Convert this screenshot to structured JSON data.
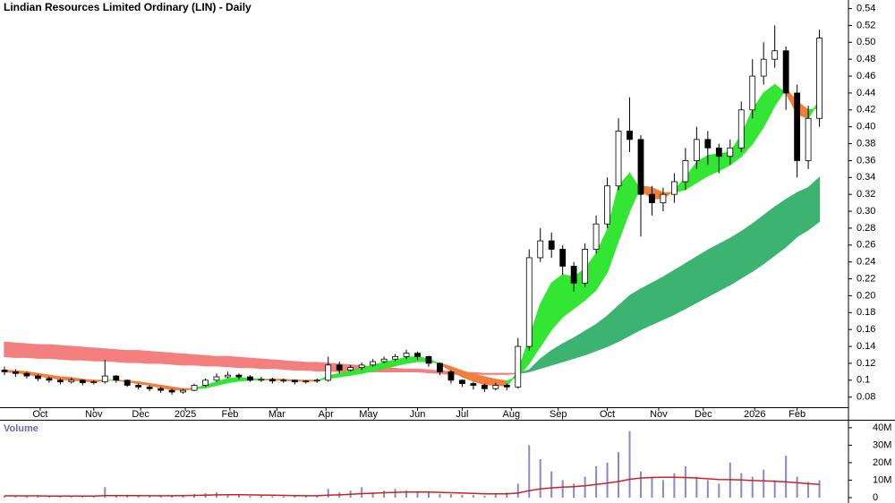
{
  "chart_data": {
    "type": "candlestick",
    "title": "Lindian Resources Limited Ordinary (LIN) - Daily",
    "xlim": [
      0,
      380
    ],
    "xticks": [
      {
        "value": 18,
        "label": "Oct"
      },
      {
        "value": 42,
        "label": "Nov"
      },
      {
        "value": 63,
        "label": "Dec"
      },
      {
        "value": 83,
        "label": "2025"
      },
      {
        "value": 103,
        "label": "Feb"
      },
      {
        "value": 124,
        "label": "Mar"
      },
      {
        "value": 146,
        "label": "Apr"
      },
      {
        "value": 165,
        "label": "May"
      },
      {
        "value": 187,
        "label": "Jun"
      },
      {
        "value": 207,
        "label": "Jul"
      },
      {
        "value": 229,
        "label": "Aug"
      },
      {
        "value": 250,
        "label": "Sep"
      },
      {
        "value": 272,
        "label": "Oct"
      },
      {
        "value": 295,
        "label": "Nov"
      },
      {
        "value": 315,
        "label": "Dec"
      },
      {
        "value": 338,
        "label": "2026"
      },
      {
        "value": 357,
        "label": "Feb"
      }
    ],
    "ylim": [
      0.068,
      0.548
    ],
    "yticks": [
      0.08,
      0.1,
      0.12,
      0.14,
      0.16,
      0.18,
      {
        "value": 0.2,
        "label": "0.20"
      },
      0.22,
      0.24,
      0.26,
      0.28,
      {
        "value": 0.3,
        "label": "0.30"
      },
      0.32,
      0.34,
      0.36,
      0.38,
      {
        "value": 0.4,
        "label": "0.40"
      },
      0.42,
      0.44,
      0.46,
      0.48,
      {
        "value": 0.5,
        "label": "0.50"
      },
      0.52,
      0.54
    ],
    "x": [
      2,
      7,
      12,
      17,
      22,
      27,
      32,
      37,
      42,
      47,
      52,
      57,
      62,
      67,
      72,
      77,
      82,
      87,
      92,
      97,
      102,
      107,
      112,
      117,
      122,
      127,
      132,
      137,
      142,
      147,
      152,
      157,
      162,
      167,
      172,
      177,
      182,
      187,
      192,
      197,
      202,
      207,
      212,
      217,
      222,
      227,
      232,
      237,
      242,
      247,
      252,
      257,
      262,
      267,
      272,
      277,
      282,
      287,
      292,
      297,
      302,
      307,
      312,
      317,
      322,
      327,
      332,
      337,
      342,
      347,
      352,
      357,
      362,
      367
    ],
    "open": [
      0.112,
      0.11,
      0.108,
      0.105,
      0.102,
      0.1,
      0.098,
      0.1,
      0.097,
      0.098,
      0.105,
      0.1,
      0.094,
      0.092,
      0.09,
      0.088,
      0.086,
      0.088,
      0.094,
      0.1,
      0.104,
      0.106,
      0.104,
      0.1,
      0.101,
      0.099,
      0.1,
      0.098,
      0.099,
      0.1,
      0.118,
      0.112,
      0.115,
      0.118,
      0.122,
      0.125,
      0.128,
      0.132,
      0.128,
      0.12,
      0.11,
      0.1,
      0.096,
      0.094,
      0.09,
      0.094,
      0.092,
      0.14,
      0.245,
      0.265,
      0.255,
      0.235,
      0.215,
      0.255,
      0.285,
      0.33,
      0.395,
      0.385,
      0.32,
      0.31,
      0.32,
      0.335,
      0.36,
      0.385,
      0.375,
      0.365,
      0.375,
      0.42,
      0.46,
      0.48,
      0.49,
      0.44,
      0.36,
      0.41
    ],
    "high": [
      0.116,
      0.113,
      0.11,
      0.107,
      0.104,
      0.102,
      0.103,
      0.101,
      0.1,
      0.124,
      0.106,
      0.101,
      0.096,
      0.094,
      0.092,
      0.09,
      0.09,
      0.096,
      0.102,
      0.108,
      0.11,
      0.108,
      0.106,
      0.104,
      0.103,
      0.102,
      0.101,
      0.1,
      0.102,
      0.128,
      0.122,
      0.118,
      0.121,
      0.125,
      0.128,
      0.131,
      0.136,
      0.134,
      0.129,
      0.121,
      0.112,
      0.101,
      0.098,
      0.096,
      0.097,
      0.096,
      0.15,
      0.255,
      0.28,
      0.275,
      0.26,
      0.24,
      0.262,
      0.295,
      0.34,
      0.41,
      0.435,
      0.39,
      0.33,
      0.328,
      0.345,
      0.375,
      0.4,
      0.395,
      0.38,
      0.385,
      0.43,
      0.48,
      0.5,
      0.52,
      0.495,
      0.45,
      0.425,
      0.515
    ],
    "low": [
      0.106,
      0.104,
      0.102,
      0.099,
      0.097,
      0.095,
      0.096,
      0.094,
      0.095,
      0.096,
      0.097,
      0.092,
      0.089,
      0.087,
      0.085,
      0.083,
      0.084,
      0.087,
      0.092,
      0.098,
      0.102,
      0.101,
      0.098,
      0.098,
      0.096,
      0.097,
      0.095,
      0.096,
      0.097,
      0.098,
      0.108,
      0.11,
      0.112,
      0.116,
      0.12,
      0.122,
      0.125,
      0.124,
      0.116,
      0.106,
      0.096,
      0.092,
      0.089,
      0.086,
      0.088,
      0.088,
      0.09,
      0.135,
      0.24,
      0.245,
      0.225,
      0.205,
      0.21,
      0.25,
      0.28,
      0.325,
      0.37,
      0.27,
      0.295,
      0.3,
      0.31,
      0.325,
      0.35,
      0.355,
      0.345,
      0.355,
      0.37,
      0.41,
      0.45,
      0.47,
      0.42,
      0.34,
      0.35,
      0.4
    ],
    "close": [
      0.11,
      0.108,
      0.105,
      0.102,
      0.1,
      0.098,
      0.1,
      0.097,
      0.098,
      0.105,
      0.1,
      0.094,
      0.092,
      0.09,
      0.088,
      0.086,
      0.088,
      0.094,
      0.1,
      0.104,
      0.106,
      0.104,
      0.1,
      0.101,
      0.099,
      0.1,
      0.098,
      0.099,
      0.1,
      0.118,
      0.112,
      0.115,
      0.118,
      0.122,
      0.125,
      0.128,
      0.132,
      0.128,
      0.12,
      0.11,
      0.1,
      0.096,
      0.094,
      0.09,
      0.094,
      0.092,
      0.14,
      0.245,
      0.265,
      0.255,
      0.235,
      0.215,
      0.255,
      0.285,
      0.33,
      0.395,
      0.385,
      0.32,
      0.31,
      0.32,
      0.335,
      0.36,
      0.385,
      0.375,
      0.365,
      0.375,
      0.42,
      0.46,
      0.48,
      0.49,
      0.44,
      0.36,
      0.41,
      0.505
    ],
    "ribbons": [
      {
        "up_color": "#3cb371",
        "down_color": "#f47f7f",
        "fast": [
          0.128,
          0.127,
          0.127,
          0.126,
          0.126,
          0.125,
          0.124,
          0.124,
          0.123,
          0.123,
          0.122,
          0.121,
          0.121,
          0.12,
          0.12,
          0.119,
          0.118,
          0.118,
          0.117,
          0.117,
          0.116,
          0.115,
          0.115,
          0.114,
          0.114,
          0.113,
          0.112,
          0.112,
          0.111,
          0.111,
          0.11,
          0.11,
          0.11,
          0.11,
          0.11,
          0.11,
          0.11,
          0.11,
          0.109,
          0.108,
          0.107,
          0.107,
          0.107,
          0.107,
          0.107,
          0.107,
          0.108,
          0.112,
          0.125,
          0.135,
          0.143,
          0.15,
          0.158,
          0.166,
          0.176,
          0.188,
          0.2,
          0.208,
          0.215,
          0.222,
          0.23,
          0.238,
          0.246,
          0.254,
          0.261,
          0.268,
          0.276,
          0.285,
          0.295,
          0.305,
          0.314,
          0.322,
          0.328,
          0.34
        ],
        "slow": [
          0.145,
          0.144,
          0.143,
          0.142,
          0.142,
          0.141,
          0.14,
          0.139,
          0.138,
          0.137,
          0.136,
          0.135,
          0.135,
          0.134,
          0.133,
          0.132,
          0.131,
          0.13,
          0.129,
          0.128,
          0.128,
          0.127,
          0.126,
          0.125,
          0.124,
          0.123,
          0.122,
          0.121,
          0.121,
          0.12,
          0.119,
          0.118,
          0.117,
          0.116,
          0.115,
          0.114,
          0.113,
          0.113,
          0.112,
          0.111,
          0.11,
          0.109,
          0.109,
          0.108,
          0.108,
          0.108,
          0.108,
          0.11,
          0.114,
          0.118,
          0.122,
          0.126,
          0.13,
          0.135,
          0.14,
          0.146,
          0.153,
          0.16,
          0.166,
          0.172,
          0.178,
          0.185,
          0.192,
          0.199,
          0.206,
          0.213,
          0.221,
          0.229,
          0.238,
          0.248,
          0.258,
          0.27,
          0.278,
          0.288
        ]
      },
      {
        "up_color": "#33e633",
        "down_color": "#f07f3c",
        "fast": [
          0.11,
          0.109,
          0.107,
          0.105,
          0.103,
          0.101,
          0.1,
          0.099,
          0.098,
          0.1,
          0.1,
          0.098,
          0.096,
          0.094,
          0.091,
          0.089,
          0.088,
          0.09,
          0.094,
          0.098,
          0.102,
          0.103,
          0.102,
          0.101,
          0.1,
          0.1,
          0.099,
          0.099,
          0.099,
          0.105,
          0.108,
          0.111,
          0.114,
          0.118,
          0.121,
          0.124,
          0.127,
          0.128,
          0.125,
          0.119,
          0.111,
          0.104,
          0.099,
          0.095,
          0.094,
          0.093,
          0.11,
          0.15,
          0.19,
          0.215,
          0.225,
          0.222,
          0.232,
          0.25,
          0.278,
          0.33,
          0.345,
          0.325,
          0.315,
          0.315,
          0.325,
          0.34,
          0.358,
          0.366,
          0.368,
          0.37,
          0.39,
          0.42,
          0.44,
          0.45,
          0.44,
          0.415,
          0.41,
          0.432
        ],
        "slow": [
          0.112,
          0.111,
          0.11,
          0.108,
          0.106,
          0.104,
          0.103,
          0.101,
          0.1,
          0.1,
          0.1,
          0.099,
          0.098,
          0.096,
          0.094,
          0.092,
          0.09,
          0.09,
          0.091,
          0.094,
          0.097,
          0.099,
          0.1,
          0.101,
          0.101,
          0.101,
          0.1,
          0.1,
          0.1,
          0.102,
          0.104,
          0.106,
          0.108,
          0.111,
          0.114,
          0.117,
          0.12,
          0.122,
          0.122,
          0.12,
          0.116,
          0.111,
          0.107,
          0.104,
          0.101,
          0.099,
          0.104,
          0.12,
          0.14,
          0.16,
          0.175,
          0.185,
          0.195,
          0.207,
          0.228,
          0.265,
          0.3,
          0.33,
          0.328,
          0.322,
          0.322,
          0.326,
          0.334,
          0.342,
          0.348,
          0.355,
          0.365,
          0.38,
          0.4,
          0.425,
          0.445,
          0.43,
          0.42,
          0.422
        ]
      }
    ],
    "volume": {
      "label": "Volume",
      "color": "#8888cc",
      "ma_color": "#cc2222",
      "ylim": [
        0,
        43000000
      ],
      "yticks": [
        0,
        {
          "value": 10000000,
          "label": "10M"
        },
        {
          "value": 20000000,
          "label": "20M"
        },
        {
          "value": 30000000,
          "label": "30M"
        },
        {
          "value": 40000000,
          "label": "40M"
        }
      ],
      "values": [
        1000000,
        1000000,
        800000,
        1000000,
        700000,
        900000,
        1200000,
        800000,
        1000000,
        6000000,
        1500000,
        1000000,
        800000,
        900000,
        1200000,
        1000000,
        1500000,
        2000000,
        2500000,
        3000000,
        2000000,
        1500000,
        1000000,
        1200000,
        800000,
        700000,
        1000000,
        900000,
        1000000,
        5000000,
        3000000,
        4000000,
        6000000,
        3000000,
        4000000,
        5000000,
        4000000,
        3000000,
        3000000,
        2000000,
        2000000,
        1500000,
        1500000,
        1000000,
        2000000,
        3000000,
        8000000,
        30000000,
        22000000,
        15000000,
        10000000,
        8000000,
        12000000,
        18000000,
        20000000,
        26000000,
        38000000,
        15000000,
        12000000,
        10000000,
        14000000,
        18000000,
        12000000,
        10000000,
        8000000,
        20000000,
        14000000,
        12000000,
        16000000,
        10000000,
        24000000,
        12000000,
        9000000,
        10000000
      ],
      "ma": [
        1000000,
        1000000,
        1000000,
        1000000,
        900000,
        900000,
        900000,
        900000,
        900000,
        1200000,
        1200000,
        1200000,
        1200000,
        1100000,
        1100000,
        1100000,
        1200000,
        1300000,
        1400000,
        1600000,
        1700000,
        1700000,
        1600000,
        1500000,
        1400000,
        1300000,
        1200000,
        1100000,
        1100000,
        1400000,
        1600000,
        1900000,
        2300000,
        2500000,
        2800000,
        3000000,
        3200000,
        3200000,
        3200000,
        3000000,
        2800000,
        2600000,
        2400000,
        2200000,
        2200000,
        2200000,
        2600000,
        4000000,
        5000000,
        5600000,
        6000000,
        6300000,
        6800000,
        7500000,
        8300000,
        9200000,
        10500000,
        11200000,
        11500000,
        11600000,
        11600000,
        11500000,
        11200000,
        10800000,
        10400000,
        10300000,
        10100000,
        9800000,
        9600000,
        9300000,
        9000000,
        8500000,
        8000000,
        7500000
      ]
    }
  }
}
